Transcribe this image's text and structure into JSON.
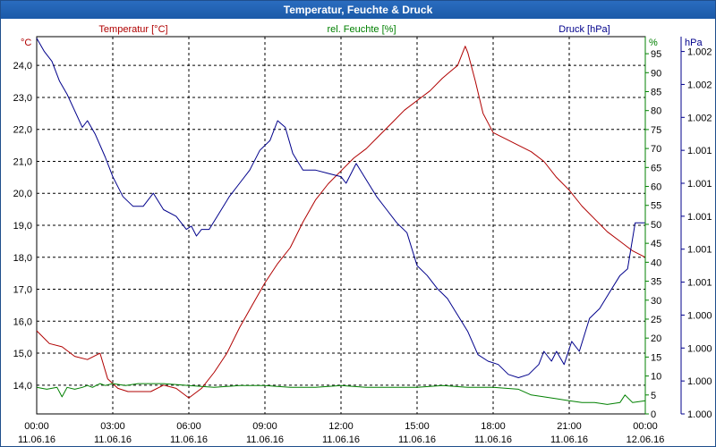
{
  "window": {
    "title": "Temperatur, Feuchte & Druck"
  },
  "chart_data": {
    "type": "line",
    "title": "Temperatur, Feuchte & Druck",
    "x_ticks": [
      {
        "time": "00:00",
        "date": "11.06.16"
      },
      {
        "time": "03:00",
        "date": "11.06.16"
      },
      {
        "time": "06:00",
        "date": "11.06.16"
      },
      {
        "time": "09:00",
        "date": "11.06.16"
      },
      {
        "time": "12:00",
        "date": "11.06.16"
      },
      {
        "time": "15:00",
        "date": "11.06.16"
      },
      {
        "time": "18:00",
        "date": "11.06.16"
      },
      {
        "time": "21:00",
        "date": "11.06.16"
      },
      {
        "time": "00:00",
        "date": "12.06.16"
      }
    ],
    "x_range_hours": [
      0,
      24
    ],
    "grid": true,
    "axes": {
      "temperature": {
        "label": "Temperatur [°C]",
        "unit": "°C",
        "color": "#b00000",
        "range": [
          13.1,
          24.9
        ],
        "ticks": [
          "14,0",
          "15,0",
          "16,0",
          "17,0",
          "18,0",
          "19,0",
          "20,0",
          "21,0",
          "22,0",
          "23,0",
          "24,0"
        ]
      },
      "humidity": {
        "label": "rel. Feuchte [%]",
        "unit": "%",
        "color": "#008000",
        "range": [
          0,
          99.5
        ],
        "ticks": [
          "0",
          "5",
          "10",
          "15",
          "20",
          "25",
          "30",
          "35",
          "40",
          "45",
          "50",
          "55",
          "60",
          "65",
          "70",
          "75",
          "80",
          "85",
          "90",
          "95"
        ]
      },
      "pressure": {
        "label": "Druck [hPa]",
        "unit": "hPa",
        "color": "#00008b",
        "range": [
          0,
          11.45
        ],
        "ticks": [
          "1.000",
          "1.000",
          "1.000",
          "1.000",
          "1.001",
          "1.001",
          "1.001",
          "1.001",
          "1.001",
          "1.002",
          "1.002",
          "1.002"
        ]
      }
    },
    "series": [
      {
        "name": "Temperatur",
        "axis": "temperature",
        "color": "#b00000",
        "x": [
          0,
          0.5,
          1,
          1.5,
          2,
          2.5,
          2.8,
          3.2,
          3.6,
          4,
          4.5,
          5,
          5.5,
          6,
          6.5,
          7,
          7.5,
          8,
          8.5,
          9,
          9.5,
          10,
          10.5,
          11,
          11.5,
          12,
          12.5,
          13,
          13.5,
          14,
          14.5,
          15,
          15.5,
          16,
          16.3,
          16.6,
          16.9,
          17,
          17.3,
          17.6,
          18,
          18.5,
          19,
          19.5,
          20,
          20.5,
          21,
          21.5,
          22,
          22.5,
          23,
          23.5,
          24
        ],
        "values": [
          15.7,
          15.3,
          15.2,
          14.9,
          14.8,
          15.0,
          14.2,
          13.9,
          13.8,
          13.8,
          13.8,
          14.0,
          13.9,
          13.6,
          13.9,
          14.4,
          15.0,
          15.8,
          16.5,
          17.2,
          17.8,
          18.3,
          19.1,
          19.8,
          20.3,
          20.7,
          21.1,
          21.4,
          21.8,
          22.2,
          22.6,
          22.9,
          23.2,
          23.6,
          23.8,
          24.0,
          24.6,
          24.4,
          23.5,
          22.5,
          21.9,
          21.7,
          21.5,
          21.3,
          21.0,
          20.5,
          20.1,
          19.6,
          19.2,
          18.8,
          18.5,
          18.2,
          18.0
        ]
      },
      {
        "name": "rel. Feuchte",
        "axis": "humidity",
        "color": "#008000",
        "x": [
          0,
          0.4,
          0.8,
          1,
          1.2,
          1.5,
          1.8,
          2,
          2.2,
          2.5,
          2.7,
          3,
          3.5,
          4,
          5,
          6,
          7,
          8,
          9,
          10,
          11,
          12,
          13,
          14,
          15,
          16,
          17,
          18,
          19,
          19.5,
          20,
          20.5,
          21,
          21.5,
          22,
          22.5,
          23,
          23.2,
          23.5,
          24
        ],
        "values": [
          7,
          6.5,
          7,
          4.5,
          7,
          6.5,
          7,
          7.5,
          7,
          8,
          7.5,
          8,
          7.5,
          8,
          8,
          7.5,
          7,
          7.5,
          7.5,
          7,
          7,
          7.5,
          7,
          7,
          7,
          7.5,
          7,
          7,
          6.5,
          5,
          4.5,
          4,
          3.5,
          3,
          3,
          2.5,
          3,
          5,
          3,
          3.5
        ]
      },
      {
        "name": "Druck",
        "axis": "pressure",
        "color": "#00008b",
        "x": [
          0,
          0.3,
          0.6,
          0.9,
          1.2,
          1.5,
          1.8,
          2,
          2.3,
          2.7,
          3,
          3.4,
          3.8,
          4.2,
          4.6,
          5,
          5.5,
          5.9,
          6.1,
          6.3,
          6.5,
          6.8,
          7.2,
          7.6,
          8,
          8.4,
          8.8,
          9.2,
          9.5,
          9.8,
          10.1,
          10.5,
          11,
          11.5,
          12,
          12.2,
          12.6,
          13,
          13.4,
          13.8,
          14.2,
          14.6,
          15,
          15.4,
          15.8,
          16.2,
          16.6,
          17,
          17.4,
          17.8,
          18.2,
          18.6,
          19,
          19.4,
          19.8,
          20,
          20.3,
          20.5,
          20.8,
          21.1,
          21.4,
          21.8,
          22.2,
          22.6,
          23,
          23.3,
          23.6,
          24
        ],
        "values": [
          11.4,
          11,
          10.7,
          10.1,
          9.7,
          9.2,
          8.7,
          8.9,
          8.5,
          7.8,
          7.2,
          6.6,
          6.3,
          6.3,
          6.7,
          6.2,
          6,
          5.6,
          5.7,
          5.4,
          5.6,
          5.6,
          6.1,
          6.6,
          7,
          7.4,
          8,
          8.3,
          8.9,
          8.7,
          7.9,
          7.4,
          7.4,
          7.3,
          7.2,
          7,
          7.6,
          7.1,
          6.6,
          6.2,
          5.8,
          5.5,
          4.5,
          4.2,
          3.8,
          3.5,
          3,
          2.5,
          1.8,
          1.6,
          1.5,
          1.2,
          1.1,
          1.2,
          1.5,
          1.9,
          1.6,
          1.9,
          1.5,
          2.2,
          1.9,
          2.9,
          3.2,
          3.7,
          4.2,
          4.4,
          5.8,
          5.8
        ]
      }
    ]
  }
}
